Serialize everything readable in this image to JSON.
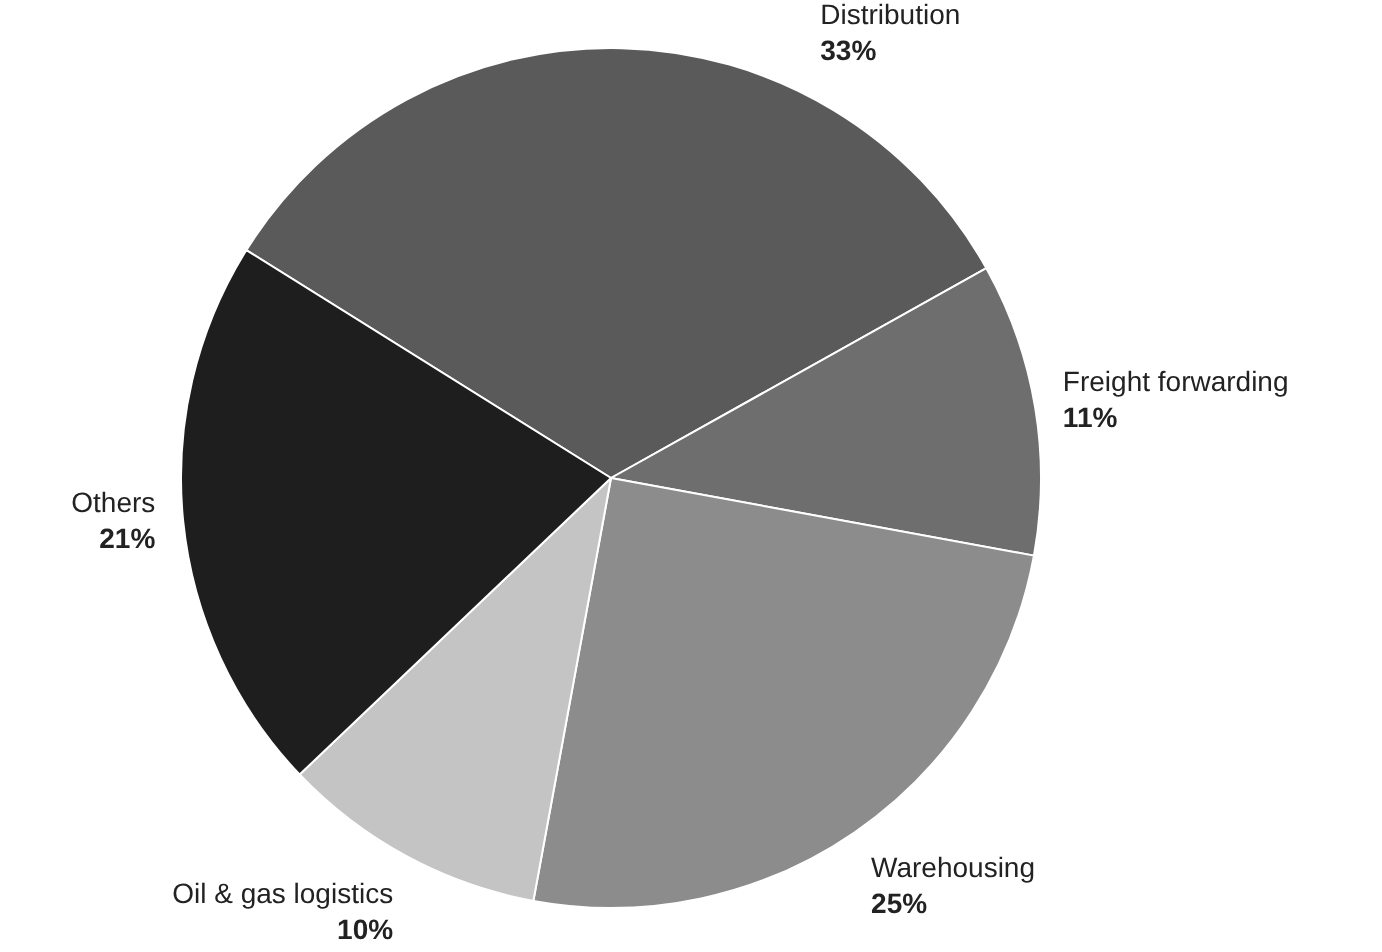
{
  "chart_data": {
    "type": "pie",
    "categories": [
      "Distribution",
      "Freight forwarding",
      "Warehousing",
      "Oil & gas logistics",
      "Others"
    ],
    "values": [
      33,
      11,
      25,
      10,
      21
    ],
    "value_labels": [
      "33%",
      "11%",
      "25%",
      "10%",
      "21%"
    ],
    "colors": [
      "#5a5a5a",
      "#6e6e6e",
      "#8c8c8c",
      "#c4c4c4",
      "#1e1e1e"
    ],
    "legend": false
  }
}
